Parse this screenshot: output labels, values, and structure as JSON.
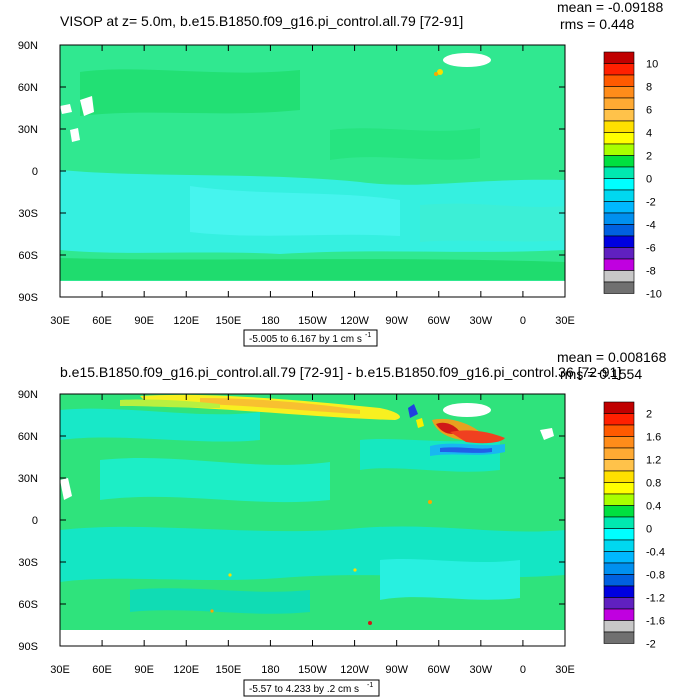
{
  "colors": {
    "ocean_base": "#2fe88a",
    "land": "#ffffff",
    "green": "#00e03a",
    "teal": "#10e8c0",
    "cyan": "#36f0e8",
    "lightblue": "#18c8f0",
    "yellow": "#f8f000",
    "orange": "#f8a800",
    "red": "#d81818",
    "blue": "#2060e8"
  },
  "chart_data": [
    {
      "type": "heatmap",
      "title": "VISOP at z=   5.0m, b.e15.B1850.f09_g16.pi_control.all.79 [72-91]",
      "stats": {
        "mean": "mean = -0.09188",
        "rms": "rms = 0.448"
      },
      "contour_info": "-5.005 to 6.167 by 1 cm s",
      "contour_unit_exp": "-1",
      "x_tick_labels": [
        "30E",
        "60E",
        "90E",
        "120E",
        "150E",
        "180",
        "150W",
        "120W",
        "90W",
        "60W",
        "30W",
        "0",
        "30E"
      ],
      "y_tick_labels": [
        "90N",
        "60N",
        "30N",
        "0",
        "30S",
        "60S",
        "90S"
      ],
      "colorbar": {
        "labels": [
          "10",
          "8",
          "6",
          "4",
          "2",
          "0",
          "-2",
          "-4",
          "-6",
          "-8",
          "-10"
        ],
        "colors": [
          "#c00000",
          "#ff2000",
          "#ff5a00",
          "#ff8c1a",
          "#ffaa33",
          "#ffc24a",
          "#ffe000",
          "#ffff00",
          "#a8ff00",
          "#00e040",
          "#00e8b0",
          "#00ffff",
          "#00d8f0",
          "#00b8ff",
          "#0090f0",
          "#0060e0",
          "#0000e0",
          "#6020c0",
          "#c000e0",
          "#c8c8c8",
          "#707070"
        ]
      }
    },
    {
      "type": "heatmap",
      "title": "b.e15.B1850.f09_g16.pi_control.all.79 [72-91] - b.e15.B1850.f09_g16.pi_control.36 [72-91]",
      "stats": {
        "mean": "mean = 0.008168",
        "rms": "rms = 0.1554"
      },
      "contour_info": "-5.57 to 4.233 by .2 cm s",
      "contour_unit_exp": "-1",
      "x_tick_labels": [
        "30E",
        "60E",
        "90E",
        "120E",
        "150E",
        "180",
        "150W",
        "120W",
        "90W",
        "60W",
        "30W",
        "0",
        "30E"
      ],
      "y_tick_labels": [
        "90N",
        "60N",
        "30N",
        "0",
        "30S",
        "60S",
        "90S"
      ],
      "colorbar": {
        "labels": [
          "2",
          "1.6",
          "1.2",
          "0.8",
          "0.4",
          "0",
          "-0.4",
          "-0.8",
          "-1.2",
          "-1.6",
          "-2"
        ],
        "colors": [
          "#c00000",
          "#ff2000",
          "#ff5a00",
          "#ff8c1a",
          "#ffaa33",
          "#ffc24a",
          "#ffe000",
          "#ffff00",
          "#a8ff00",
          "#00e040",
          "#00e8b0",
          "#00ffff",
          "#00d8f0",
          "#00b8ff",
          "#0090f0",
          "#0060e0",
          "#0000e0",
          "#6020c0",
          "#c000e0",
          "#c8c8c8",
          "#707070"
        ]
      }
    }
  ]
}
